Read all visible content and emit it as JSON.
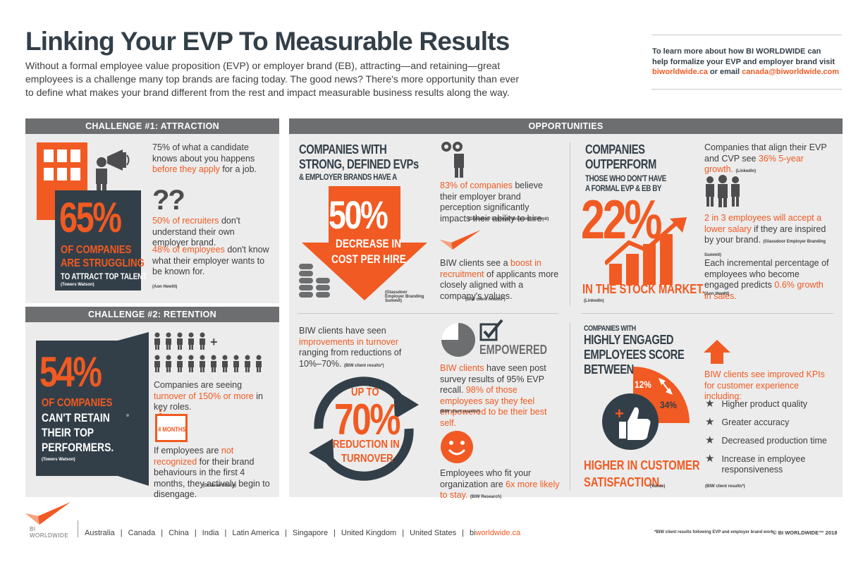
{
  "header": {
    "title": "Linking Your EVP To Measurable Results",
    "intro": "Without a formal employee value proposition (EVP) or employer brand (EB), attracting—and retaining—great employees is a challenge many top brands are facing today. The good news? There's more opportunity than ever to define what makes your brand different from the rest and impact measurable business results along the way.",
    "learn_more_line1": "To learn more about how BI WORLDWIDE can",
    "learn_more_line2": "help formalize your EVP and employer brand visit",
    "learn_more_link": "biworldwide.ca",
    "learn_more_or": " or email ",
    "learn_more_email": "canada@biworldwide.com"
  },
  "challenge1": {
    "header": "CHALLENGE #1: ATTRACTION",
    "big_stat": "65%",
    "stat_line1": "OF COMPANIES",
    "stat_line2": "ARE STRUGGLING",
    "stat_line3": "TO ATTRACT TOP TALENT",
    "stat_cite": "(Towers Watson)",
    "fact1_a": "75% of what a candidate knows about you happens ",
    "fact1_b": "before they apply",
    "fact1_c": " for a job.",
    "question_marks": "??",
    "fact2_a": "50% of recruiters",
    "fact2_b": " don't understand their own employer brand.",
    "fact3_a": "48% of employees",
    "fact3_b": " don't know what their employer wants to be known for.",
    "fact3_cite": "(Aon Hewitt)"
  },
  "challenge2": {
    "header": "CHALLENGE #2: RETENTION",
    "big_stat": "54%",
    "stat_line1": "OF COMPANIES",
    "stat_line2": "CAN'T RETAIN",
    "stat_line3": "THEIR TOP",
    "stat_line4": "PERFORMERS.",
    "stat_cite": "(Towers Watson)",
    "plus": "+",
    "fact1_a": "Companies are seeing ",
    "fact1_b": "turnover of 150% or more",
    "fact1_c": " in key roles.",
    "calendar_label": "4 MONTHS",
    "fact2_a": "If employees are ",
    "fact2_b": "not recognized",
    "fact2_c": " for their brand behaviours in the first 4 months, they actively begin to disengage.",
    "fact2_cite": "(Dr. Brad Shuck)"
  },
  "opportunities": {
    "header": "OPPORTUNITIES",
    "block1": {
      "title_line1": "COMPANIES WITH",
      "title_line2": "STRONG, DEFINED EVPs",
      "title_line3": "& EMPLOYER BRANDS HAVE A",
      "arrow_stat": "50%",
      "arrow_line1": "DECREASE IN",
      "arrow_line2": "COST PER HIRE",
      "cite": "(Glassdoor Employer Branding Summit)",
      "fact1_a": "83% of companies",
      "fact1_b": " believe their employer brand perception significantly impacts their ability to hire.",
      "fact1_cite": "(Glassdoor Employer Branding Summit)",
      "fact2_a": "BIW clients see a ",
      "fact2_b": "boost in recruitment",
      "fact2_c": " of applicants more closely aligned with a company's values.",
      "fact2_cite": "(BIW client results*)"
    },
    "block2": {
      "title_line1": "COMPANIES",
      "title_line2": "OUTPERFORM",
      "title_line3": "THOSE WHO DON'T HAVE",
      "title_line4": "A FORMAL EVP & EB BY",
      "big_stat": "22%",
      "stat_label": "IN THE STOCK MARKET.",
      "cite": "(LinkedIn)",
      "fact1_a": "Companies that align their EVP and CVP see ",
      "fact1_b": "36% 5-year growth.",
      "fact1_cite": "(LinkedIn)",
      "fact2_a": "2 in 3 employees will accept a lower salary",
      "fact2_b": " if they are inspired by your brand.",
      "fact2_cite": "(Glassdoor Employer Branding Summit)",
      "fact3_a": "Each incremental percentage of employees who become engaged predicts ",
      "fact3_b": "0.6% growth in sales.",
      "fact3_cite": "(Aon Hewitt)"
    },
    "block3": {
      "fact1_a": "BIW clients have seen ",
      "fact1_b": "improvements in turnover",
      "fact1_c": " ranging from reductions of 10%–70%.",
      "fact1_cite": "(BIW client results*)",
      "circle_line1": "UP TO",
      "circle_stat": "70%",
      "circle_line2": "REDUCTION IN",
      "circle_line3": "TURNOVER",
      "empowered": "EMPOWERED",
      "fact2_a": "BIW clients",
      "fact2_b": " have seen post survey results of 95% EVP recall. ",
      "fact2_c": "98% of those employees say they feel empowered to be their best self.",
      "fact2_cite": "(BIW client results*)",
      "fact3_a": "Employees who fit your organization are ",
      "fact3_b": "6x more likely to stay.",
      "fact3_cite": "(BIW Research)",
      "pie_value": 0.75
    },
    "block4": {
      "title_line1": "COMPANIES WITH",
      "title_line2": "HIGHLY ENGAGED",
      "title_line3": "EMPLOYEES SCORE",
      "title_line4": "BETWEEN",
      "range_low": "12%",
      "range_high": "34%",
      "stat_line1": "HIGHER IN CUSTOMER",
      "stat_line2": "SATISFACTION.",
      "cite": "(Vance)",
      "kpi_intro": "BIW clients see improved KPIs for customer experience including:",
      "kpis": [
        "Higher product quality",
        "Greater accuracy",
        "Decreased production time",
        "Increase in employee responsiveness"
      ],
      "kpi_cite": "(BIW client results*)"
    }
  },
  "footer": {
    "logo_line1": "BI",
    "logo_line2": "WORLDWIDE",
    "regions": [
      "Australia",
      "Canada",
      "China",
      "India",
      "Latin America",
      "Singapore",
      "United Kingdom",
      "United States"
    ],
    "site_prefix": "bi",
    "site_suffix": "worldwide.ca",
    "note": "*BIW client results following EVP and employer brand work.",
    "copyright": "© BI WORLDWIDE™ 2018"
  },
  "colors": {
    "orange": "#f15a22",
    "dark": "#333f48",
    "panel": "#ececec",
    "header_gray": "#6d6e70"
  }
}
